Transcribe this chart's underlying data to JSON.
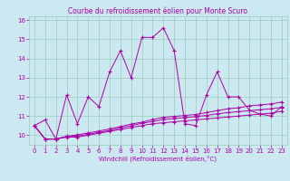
{
  "title": "Courbe du refroidissement éolien pour Monte Scuro",
  "xlabel": "Windchill (Refroidissement éolien,°C)",
  "background_color": "#cce8f0",
  "grid_color": "#99ccbb",
  "line_color": "#aa00aa",
  "xlim": [
    -0.5,
    23.5
  ],
  "ylim": [
    9.5,
    16.2
  ],
  "xticks": [
    0,
    1,
    2,
    3,
    4,
    5,
    6,
    7,
    8,
    9,
    10,
    11,
    12,
    13,
    14,
    15,
    16,
    17,
    18,
    19,
    20,
    21,
    22,
    23
  ],
  "yticks": [
    10,
    11,
    12,
    13,
    14,
    15,
    16
  ],
  "series": [
    [
      10.5,
      10.8,
      9.8,
      12.1,
      10.6,
      12.0,
      11.5,
      13.3,
      14.4,
      13.0,
      15.1,
      15.1,
      15.6,
      14.4,
      10.6,
      10.5,
      12.1,
      13.3,
      12.0,
      12.0,
      11.3,
      11.1,
      11.0,
      11.5
    ],
    [
      10.5,
      9.8,
      9.8,
      9.9,
      9.9,
      10.0,
      10.1,
      10.2,
      10.3,
      10.4,
      10.5,
      10.6,
      10.65,
      10.7,
      10.75,
      10.8,
      10.85,
      10.9,
      10.95,
      11.0,
      11.05,
      11.1,
      11.15,
      11.25
    ],
    [
      10.5,
      9.8,
      9.8,
      9.92,
      9.95,
      10.05,
      10.15,
      10.25,
      10.38,
      10.5,
      10.62,
      10.72,
      10.82,
      10.87,
      10.92,
      10.97,
      11.03,
      11.12,
      11.18,
      11.23,
      11.28,
      11.33,
      11.38,
      11.45
    ],
    [
      10.5,
      9.8,
      9.8,
      9.95,
      10.02,
      10.12,
      10.22,
      10.33,
      10.45,
      10.58,
      10.68,
      10.82,
      10.93,
      10.98,
      11.03,
      11.08,
      11.18,
      11.28,
      11.38,
      11.43,
      11.53,
      11.58,
      11.63,
      11.73
    ]
  ]
}
